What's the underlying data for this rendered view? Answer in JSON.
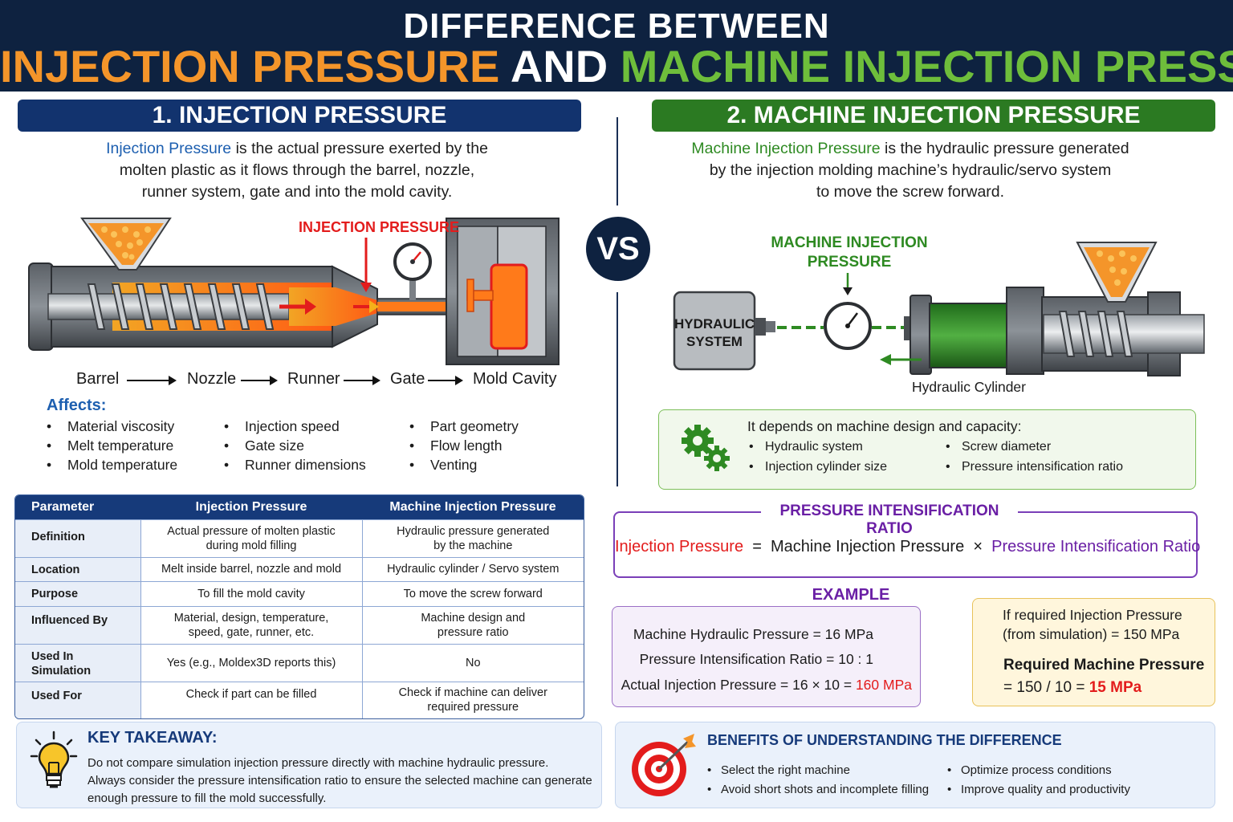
{
  "header": {
    "line1": "DIFFERENCE BETWEEN",
    "part_a": "INJECTION PRESSURE",
    "part_b": " AND ",
    "part_c": "MACHINE INJECTION PRESSURE"
  },
  "left": {
    "section_title": "1. INJECTION PRESSURE",
    "desc_highlight": "Injection Pressure",
    "desc_line1_rest": " is the actual pressure exerted by the",
    "desc_line2": "molten plastic as it flows through the barrel, nozzle,",
    "desc_line3": "runner system, gate and into the mold cavity.",
    "diagram_label": "INJECTION PRESSURE",
    "flow": [
      "Barrel",
      "Nozzle",
      "Runner",
      "Gate",
      "Mold Cavity"
    ],
    "affects_title": "Affects:",
    "affects": [
      [
        "Material viscosity",
        "Melt temperature",
        "Mold temperature"
      ],
      [
        "Injection speed",
        "Gate size",
        "Runner dimensions"
      ],
      [
        "Part geometry",
        "Flow length",
        "Venting"
      ]
    ]
  },
  "vs": "VS",
  "table": {
    "headers": [
      "Parameter",
      "Injection Pressure",
      "Machine Injection Pressure"
    ],
    "rows": [
      {
        "param": "Definition",
        "a1": "Actual pressure of molten plastic",
        "a2": "during mold filling",
        "b1": "Hydraulic pressure generated",
        "b2": "by the machine"
      },
      {
        "param": "Location",
        "a1": "Melt inside barrel, nozzle and mold",
        "a2": "",
        "b1": "Hydraulic cylinder / Servo system",
        "b2": ""
      },
      {
        "param": "Purpose",
        "a1": "To fill the mold cavity",
        "a2": "",
        "b1": "To move the screw forward",
        "b2": ""
      },
      {
        "param": "Influenced By",
        "a1": "Material, design, temperature,",
        "a2": "speed, gate, runner, etc.",
        "b1": "Machine design and",
        "b2": "pressure ratio"
      },
      {
        "param": "Used In Simulation",
        "a1": "Yes (e.g., Moldex3D reports this)",
        "a2": "",
        "b1": "No",
        "b2": ""
      },
      {
        "param": "Used For",
        "a1": "Check if part can be filled",
        "a2": "",
        "b1": "Check if machine can deliver",
        "b2": "required pressure"
      }
    ]
  },
  "key_takeaway": {
    "title": "KEY TAKEAWAY:",
    "line1": "Do not compare simulation injection pressure directly with machine hydraulic pressure.",
    "line2": "Always consider the pressure intensification ratio to ensure the selected machine can generate",
    "line3": "enough pressure to fill the mold successfully."
  },
  "right": {
    "section_title": "2. MACHINE INJECTION PRESSURE",
    "desc_highlight": "Machine Injection Pressure",
    "desc_line1_rest": " is the hydraulic pressure generated",
    "desc_line2": "by the injection molding machine’s hydraulic/servo system",
    "desc_line3": "to move the screw forward.",
    "diagram_label_1": "MACHINE INJECTION",
    "diagram_label_2": "PRESSURE",
    "hydraulic_1": "HYDRAULIC",
    "hydraulic_2": "SYSTEM",
    "cylinder_label": "Hydraulic Cylinder",
    "depends_title": "It depends on machine design and capacity:",
    "depends": [
      "Hydraulic system",
      "Injection cylinder size",
      "Screw diameter",
      "Pressure intensification ratio"
    ]
  },
  "ratio": {
    "title": "PRESSURE INTENSIFICATION RATIO",
    "eq_a": "Injection Pressure",
    "eq_eq": "  =  ",
    "eq_b": "Machine Injection Pressure",
    "eq_x": "  ×  ",
    "eq_c": "Pressure Intensification Ratio"
  },
  "example": {
    "title": "EXAMPLE",
    "r1": "Machine Hydraulic Pressure  =  16 MPa",
    "r2": "Pressure Intensification Ratio  =  10 : 1",
    "r3_prefix": "Actual Injection Pressure  =  16 × 10 = ",
    "r3_value": "160 MPa"
  },
  "required": {
    "l1": "If required Injection Pressure",
    "l2": "(from simulation)  =  150 MPa",
    "l3": "Required Machine Pressure",
    "l4_prefix": "=  150 / 10  =  ",
    "l4_value": "15 MPa"
  },
  "benefits": {
    "title": "BENEFITS OF UNDERSTANDING THE DIFFERENCE",
    "items": [
      "Select the right machine",
      "Avoid short shots and incomplete filling",
      "Optimize process conditions",
      "Improve quality and productivity"
    ]
  },
  "colors": {
    "navy": "#0e2240",
    "orange": "#f4952a",
    "green": "#2e8a22",
    "red": "#e31c1c",
    "purple": "#6a1fa5"
  }
}
